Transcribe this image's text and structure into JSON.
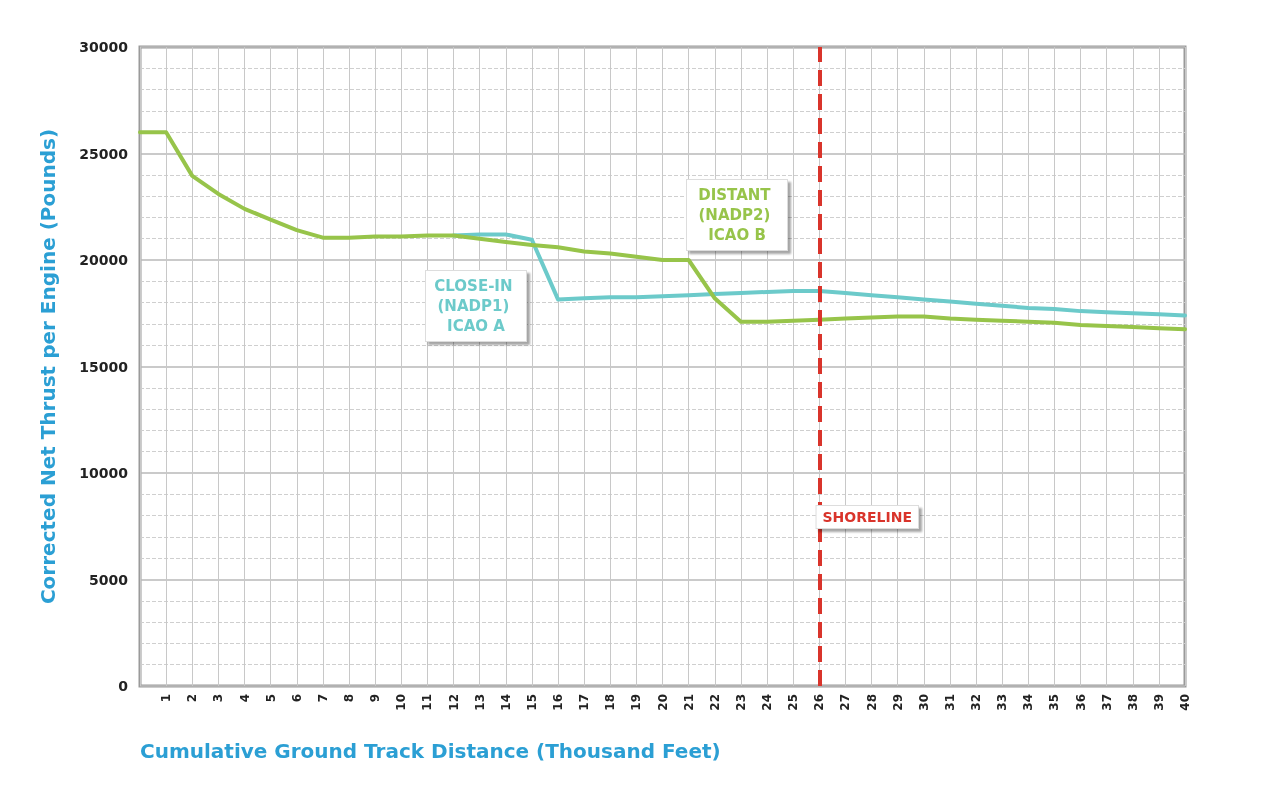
{
  "chart_data": {
    "type": "line",
    "xlabel": "Cumulative Ground Track Distance (Thousand Feet)",
    "ylabel": "Corrected Net Thrust per Engine (Pounds)",
    "xlim": [
      0,
      40
    ],
    "xticks": [
      1,
      2,
      3,
      4,
      5,
      6,
      7,
      8,
      9,
      10,
      11,
      12,
      13,
      14,
      15,
      16,
      17,
      18,
      19,
      20,
      21,
      22,
      23,
      24,
      25,
      26,
      27,
      28,
      29,
      30,
      31,
      32,
      33,
      34,
      35,
      36,
      37,
      38,
      39,
      40
    ],
    "ylim": [
      0,
      30000
    ],
    "yticks": [
      0,
      5000,
      10000,
      15000,
      20000,
      25000,
      30000
    ],
    "grid": true,
    "legend": false,
    "marker": "none",
    "line_style": "solid",
    "series": [
      {
        "name": "CLOSE-IN (NADP1) ICAO A",
        "color": "#6ccaca",
        "x": [
          12,
          13,
          14,
          15,
          16,
          17,
          18,
          19,
          20,
          21,
          22,
          23,
          24,
          25,
          26,
          27,
          28,
          29,
          30,
          31,
          32,
          33,
          34,
          35,
          36,
          37,
          38,
          39,
          40
        ],
        "values": [
          21150,
          21200,
          21200,
          20950,
          18150,
          18200,
          18250,
          18250,
          18300,
          18350,
          18400,
          18450,
          18500,
          18550,
          18550,
          18450,
          18350,
          18250,
          18150,
          18050,
          17950,
          17850,
          17750,
          17700,
          17600,
          17550,
          17500,
          17450,
          17400
        ]
      },
      {
        "name": "DISTANT (NADP2) ICAO B",
        "color": "#97c44a",
        "x": [
          0,
          1,
          2,
          3,
          4,
          5,
          6,
          7,
          8,
          9,
          10,
          11,
          12,
          13,
          14,
          15,
          16,
          17,
          18,
          19,
          20,
          21,
          22,
          23,
          24,
          25,
          26,
          27,
          28,
          29,
          30,
          31,
          32,
          33,
          34,
          35,
          36,
          37,
          38,
          39,
          40
        ],
        "values": [
          26000,
          26000,
          23950,
          23100,
          22400,
          21900,
          21400,
          21050,
          21050,
          21100,
          21100,
          21150,
          21150,
          21000,
          20850,
          20700,
          20600,
          20400,
          20300,
          20150,
          20000,
          20000,
          18200,
          17100,
          17100,
          17150,
          17200,
          17250,
          17300,
          17350,
          17350,
          17250,
          17200,
          17150,
          17100,
          17050,
          16950,
          16900,
          16850,
          16800,
          16750
        ]
      }
    ],
    "ref_lines": [
      {
        "axis": "x",
        "value": 26,
        "label": "SHORELINE",
        "color": "#d9342b",
        "line_style": "dashed"
      }
    ]
  }
}
